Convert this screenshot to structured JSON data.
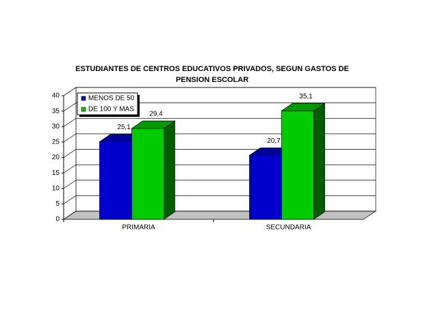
{
  "chart_data": {
    "type": "bar3d",
    "title": "ESTUDIANTES DE CENTROS EDUCATIVOS PRIVADOS, SEGUN GASTOS DE PENSION ESCOLAR",
    "categories": [
      "PRIMARIA",
      "SECUNDARIA"
    ],
    "series": [
      {
        "name": "MENOS DE 50",
        "color": "#0000cc",
        "values": [
          25.1,
          20.7
        ],
        "value_labels": [
          "25,1",
          "20,7"
        ]
      },
      {
        "name": "DE 100 Y MAS",
        "color": "#00cc00",
        "values": [
          29.4,
          35.1
        ],
        "value_labels": [
          "29,4",
          "35,1"
        ]
      }
    ],
    "ylim": [
      0,
      40
    ],
    "yticks": [
      0,
      5,
      10,
      15,
      20,
      25,
      30,
      35,
      40
    ],
    "grid": true,
    "legend": "upper left"
  }
}
